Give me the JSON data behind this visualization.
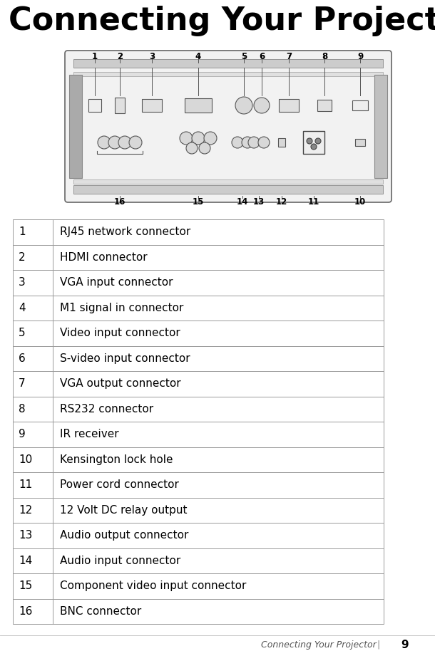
{
  "title": "Connecting Your Projector",
  "title_fontsize": 32,
  "bg_color": "#ffffff",
  "table_rows": [
    [
      "1",
      "RJ45 network connector"
    ],
    [
      "2",
      "HDMI connector"
    ],
    [
      "3",
      "VGA input connector"
    ],
    [
      "4",
      "M1 signal in connector"
    ],
    [
      "5",
      "Video input connector"
    ],
    [
      "6",
      "S-video input connector"
    ],
    [
      "7",
      "VGA output connector"
    ],
    [
      "8",
      "RS232 connector"
    ],
    [
      "9",
      "IR receiver"
    ],
    [
      "10",
      "Kensington lock hole"
    ],
    [
      "11",
      "Power cord connector"
    ],
    [
      "12",
      "12 Volt DC relay output"
    ],
    [
      "13",
      "Audio output connector"
    ],
    [
      "14",
      "Audio input connector"
    ],
    [
      "15",
      "Component video input connector"
    ],
    [
      "16",
      "BNC connector"
    ]
  ],
  "footer_text": "Connecting Your Projector",
  "footer_page": "9",
  "table_fontsize": 11,
  "num_fontsize": 11,
  "footer_fontsize": 9,
  "table_border_color": "#999999",
  "table_text_color": "#000000",
  "num_col_color": "#000000",
  "fig_width": 6.1,
  "fig_height": 9.14,
  "dpi": 100
}
